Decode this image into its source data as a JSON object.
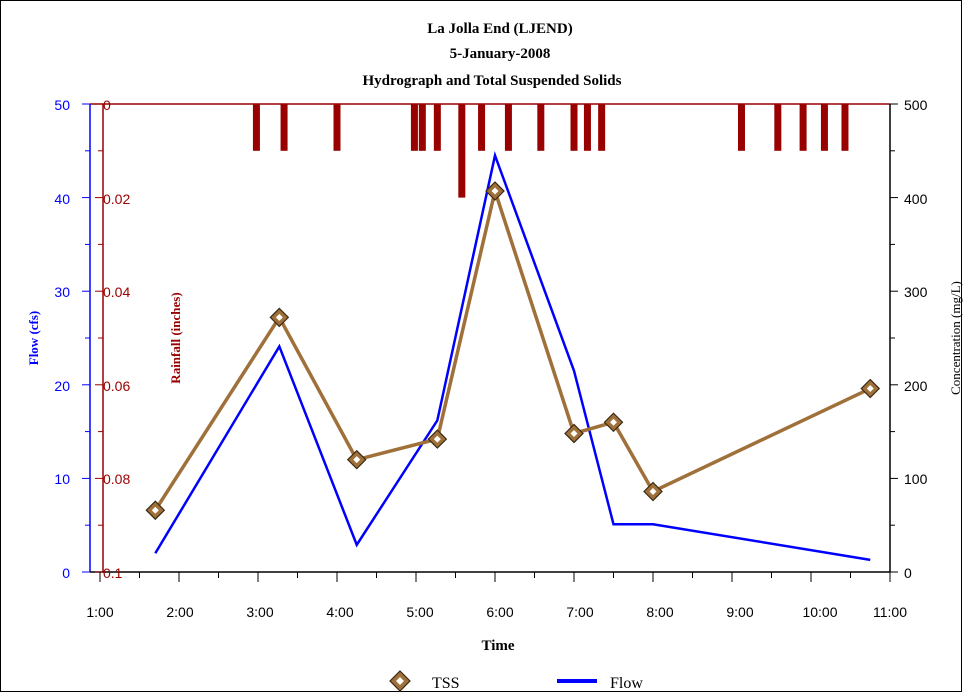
{
  "chart_data": {
    "type": "line",
    "title_lines": [
      "La Jolla End (LJEND)",
      "5-January-2008",
      "Hydrograph and Total Suspended Solids"
    ],
    "xlabel": "Time",
    "x_ticks": [
      "1:00",
      "2:00",
      "3:00",
      "4:00",
      "5:00",
      "6:00",
      "7:00",
      "8:00",
      "9:00",
      "10:00",
      "11:00"
    ],
    "xlim_hours": [
      1,
      11
    ],
    "flow_axis": {
      "label": "Flow (cfs)",
      "ticks": [
        "0",
        "10",
        "20",
        "30",
        "40",
        "50"
      ],
      "ylim": [
        0,
        50
      ],
      "color": "#0000ff"
    },
    "rain_axis": {
      "label": "Rainfall (inches)",
      "ticks": [
        "0.1",
        "0.08",
        "0.06",
        "0.04",
        "0.02",
        "0"
      ],
      "ylim": [
        0.1,
        0
      ],
      "inverted": true,
      "color": "#990000"
    },
    "conc_axis": {
      "label": "Concentration (mg/L)",
      "ticks": [
        "0",
        "100",
        "200",
        "300",
        "400",
        "500"
      ],
      "ylim": [
        0,
        500
      ],
      "color": "#000000"
    },
    "series": [
      {
        "name": "TSS",
        "axis": "concentration",
        "color": "#a0703a",
        "marker": "diamond",
        "x_hours": [
          1.7,
          3.27,
          4.25,
          5.27,
          6.0,
          7.0,
          7.5,
          8.0,
          10.75
        ],
        "values": [
          66,
          272,
          120,
          142,
          407,
          148,
          160,
          86,
          196
        ]
      },
      {
        "name": "Flow",
        "axis": "flow",
        "color": "#0000ff",
        "x_hours": [
          1.7,
          3.27,
          4.25,
          5.27,
          6.0,
          7.0,
          7.5,
          8.0,
          10.75
        ],
        "values": [
          2.0,
          24.1,
          2.9,
          16.2,
          44.5,
          21.5,
          5.1,
          5.1,
          1.3
        ]
      },
      {
        "name": "Rainfall",
        "axis": "rainfall",
        "type": "bar",
        "color": "#990000",
        "x_hours": [
          2.98,
          3.33,
          4.0,
          4.98,
          5.08,
          5.27,
          5.58,
          5.83,
          6.17,
          6.58,
          7.0,
          7.17,
          7.35,
          9.12,
          9.58,
          9.9,
          10.17,
          10.43
        ],
        "values": [
          0.01,
          0.01,
          0.01,
          0.01,
          0.01,
          0.01,
          0.02,
          0.01,
          0.01,
          0.01,
          0.01,
          0.01,
          0.01,
          0.01,
          0.01,
          0.01,
          0.01,
          0.01
        ]
      }
    ],
    "legend": {
      "placement": "bottom",
      "entries": [
        "TSS",
        "Flow"
      ]
    }
  }
}
